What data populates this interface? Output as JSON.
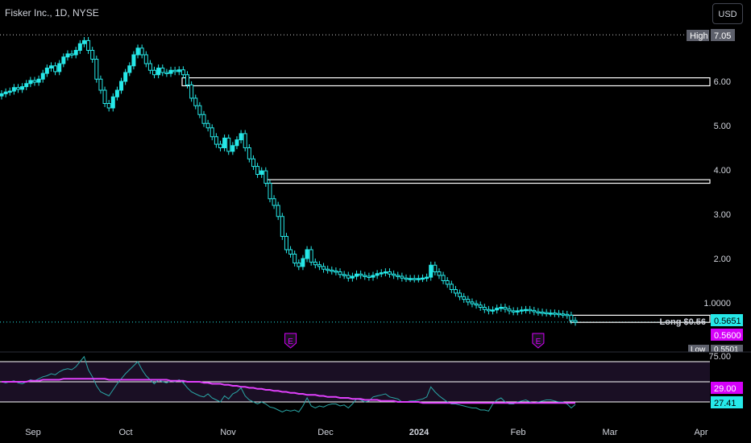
{
  "header": {
    "title": "Fisker Inc., 1D, NYSE",
    "currency": "USD"
  },
  "colors": {
    "background": "#000000",
    "candle": "#26e8e8",
    "rsi_line": "#2aa6a6",
    "rsi_ma": "#e040fb",
    "level_line": "#ffffff",
    "grid_dot": "#c8c8c8",
    "axis_text": "#d1d4dc",
    "badge_gray": "#5d606b",
    "badge_teal": "#26e8e8",
    "badge_magenta": "#d500f9"
  },
  "chart_data": [
    {
      "type": "candlestick",
      "title": "Fisker Inc., 1D, NYSE",
      "ylim": [
        0.5,
        7.3
      ],
      "yticks": [
        "6.00",
        "5.00",
        "4.00",
        "3.00",
        "2.00",
        "1.0000"
      ],
      "xticks": [
        "Sep",
        "Oct",
        "Nov",
        "Dec",
        "2024",
        "Feb",
        "Mar",
        "Apr"
      ],
      "close": [
        5.72,
        5.76,
        5.78,
        5.86,
        5.82,
        5.88,
        5.95,
        6.02,
        5.98,
        6.05,
        6.18,
        6.3,
        6.35,
        6.22,
        6.4,
        6.55,
        6.62,
        6.6,
        6.7,
        6.85,
        6.92,
        6.7,
        6.5,
        6.05,
        5.8,
        5.5,
        5.4,
        5.65,
        5.8,
        6.0,
        6.2,
        6.35,
        6.6,
        6.75,
        6.6,
        6.4,
        6.25,
        6.15,
        6.3,
        6.2,
        6.18,
        6.25,
        6.22,
        6.26,
        6.15,
        5.92,
        5.62,
        5.45,
        5.25,
        5.05,
        4.95,
        4.75,
        4.58,
        4.5,
        4.72,
        4.42,
        4.55,
        4.68,
        4.82,
        4.5,
        4.25,
        4.08,
        3.9,
        3.98,
        3.7,
        3.35,
        3.2,
        2.95,
        2.5,
        2.2,
        2.1,
        1.9,
        1.82,
        2.0,
        2.2,
        1.92,
        1.86,
        1.82,
        1.76,
        1.74,
        1.72,
        1.7,
        1.64,
        1.62,
        1.56,
        1.6,
        1.65,
        1.62,
        1.6,
        1.58,
        1.62,
        1.66,
        1.68,
        1.7,
        1.65,
        1.62,
        1.6,
        1.56,
        1.55,
        1.55,
        1.54,
        1.55,
        1.56,
        1.58,
        1.85,
        1.7,
        1.62,
        1.5,
        1.42,
        1.3,
        1.22,
        1.14,
        1.08,
        1.02,
        0.98,
        0.95,
        0.9,
        0.85,
        0.82,
        0.84,
        0.88,
        0.9,
        0.86,
        0.82,
        0.8,
        0.82,
        0.84,
        0.85,
        0.83,
        0.8,
        0.79,
        0.78,
        0.77,
        0.77,
        0.76,
        0.75,
        0.74,
        0.72,
        0.6,
        0.5651
      ],
      "high": 7.05,
      "low": 0.5501,
      "last": 0.5651,
      "entry": 0.56,
      "position_label": "Long $0.56",
      "price_labels": {
        "high_label": "High",
        "high_value": "7.05",
        "last": "0.5651",
        "entry": "0.5600",
        "low_label": "Low",
        "low_value": "0.5501"
      },
      "zones": [
        {
          "top": 6.08,
          "bottom": 5.9
        },
        {
          "top": 3.78,
          "bottom": 3.7
        },
        {
          "top": 0.72,
          "bottom": 0.56
        }
      ],
      "earnings_markers": [
        {
          "label": "E",
          "date_index": 70
        },
        {
          "label": "E",
          "date_index": 130
        }
      ]
    },
    {
      "type": "line",
      "title": "RSI",
      "ylim": [
        20,
        80
      ],
      "yticks": [
        "75.00"
      ],
      "levels": [
        70,
        50,
        30
      ],
      "series": [
        {
          "name": "",
          "values": [
            50,
            49,
            50,
            51,
            49,
            48,
            50,
            52,
            51,
            53,
            55,
            56,
            58,
            57,
            60,
            62,
            63,
            62,
            65,
            70,
            75,
            62,
            55,
            46,
            40,
            38,
            36,
            42,
            48,
            53,
            58,
            62,
            66,
            70,
            62,
            56,
            52,
            48,
            52,
            50,
            49,
            51,
            50,
            52,
            49,
            44,
            40,
            38,
            36,
            35,
            38,
            34,
            32,
            30,
            36,
            33,
            38,
            40,
            44,
            36,
            32,
            30,
            28,
            30,
            28,
            25,
            24,
            22,
            20,
            22,
            21,
            22,
            20,
            26,
            34,
            26,
            24,
            26,
            25,
            27,
            28,
            28,
            26,
            27,
            24,
            28,
            33,
            32,
            30,
            31,
            35,
            36,
            37,
            38,
            35,
            34,
            33,
            30,
            30,
            31,
            31,
            32,
            33,
            35,
            45,
            40,
            36,
            33,
            30,
            28,
            28,
            27,
            26,
            25,
            24,
            24,
            22,
            22,
            21,
            28,
            32,
            34,
            30,
            28,
            28,
            30,
            31,
            32,
            30,
            29,
            30,
            31,
            32,
            32,
            31,
            30,
            30,
            28,
            24,
            27.41
          ]
        },
        {
          "name": "",
          "values": [
            50,
            50,
            50,
            50,
            50,
            50,
            50,
            51,
            51,
            51,
            52,
            52,
            52,
            52,
            52,
            53,
            53,
            53,
            53,
            53,
            53,
            53,
            53,
            53,
            53,
            53,
            52,
            52,
            52,
            52,
            52,
            52,
            52,
            52,
            52,
            52,
            52,
            52,
            52,
            52,
            52,
            51,
            51,
            51,
            51,
            50,
            50,
            50,
            50,
            49,
            49,
            48,
            48,
            48,
            47,
            47,
            46,
            46,
            45,
            45,
            44,
            44,
            43,
            43,
            42,
            42,
            41,
            41,
            40,
            40,
            39,
            39,
            38,
            38,
            37,
            37,
            37,
            36,
            36,
            35,
            35,
            35,
            34,
            34,
            34,
            33,
            33,
            33,
            32,
            32,
            32,
            32,
            31,
            31,
            31,
            31,
            30,
            30,
            30,
            30,
            30,
            30,
            29,
            29,
            29,
            29,
            29,
            29,
            29,
            29,
            29,
            29,
            29,
            29,
            29,
            29,
            29,
            29,
            29,
            29,
            29,
            29,
            29,
            29,
            29,
            29,
            29,
            29,
            29,
            29,
            29,
            29,
            29,
            29,
            29,
            29,
            29,
            29,
            29,
            29.0
          ]
        }
      ],
      "labels": {
        "ma": "29.00",
        "rsi": "27.41"
      }
    }
  ]
}
